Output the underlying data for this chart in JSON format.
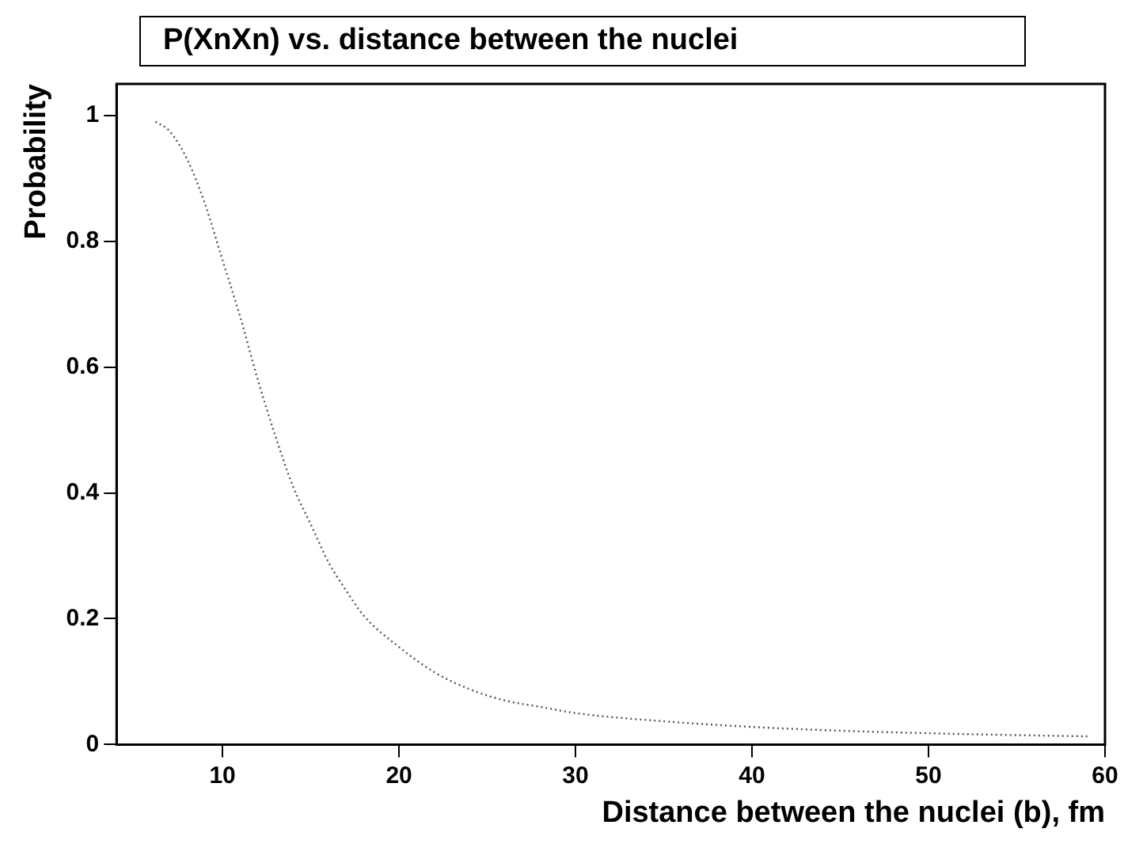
{
  "chart_data": {
    "type": "line",
    "title": "P(XnXn) vs. distance between the nuclei",
    "xlabel": "Distance between the nuclei (b), fm",
    "ylabel": "Probability",
    "x": [
      6.2,
      7,
      8,
      9,
      10,
      11,
      12,
      13,
      14,
      15,
      16,
      17,
      18,
      20,
      22,
      24,
      26,
      28,
      30,
      35,
      40,
      45,
      50,
      55,
      59
    ],
    "series": [
      {
        "color": "#555555",
        "values": [
          0.99,
          0.975,
          0.93,
          0.86,
          0.77,
          0.68,
          0.58,
          0.49,
          0.41,
          0.35,
          0.29,
          0.245,
          0.205,
          0.155,
          0.115,
          0.088,
          0.07,
          0.06,
          0.05,
          0.037,
          0.028,
          0.022,
          0.018,
          0.015,
          0.013
        ]
      }
    ],
    "xlim": [
      4,
      60
    ],
    "xticks": [
      10,
      20,
      30,
      40,
      50,
      60
    ],
    "ylim": [
      0,
      1.05
    ],
    "yticks": [
      0,
      0.2,
      0.4,
      0.6,
      0.8,
      1
    ],
    "grid": false,
    "legend": false,
    "marker": "none",
    "line_style": "dotted"
  }
}
